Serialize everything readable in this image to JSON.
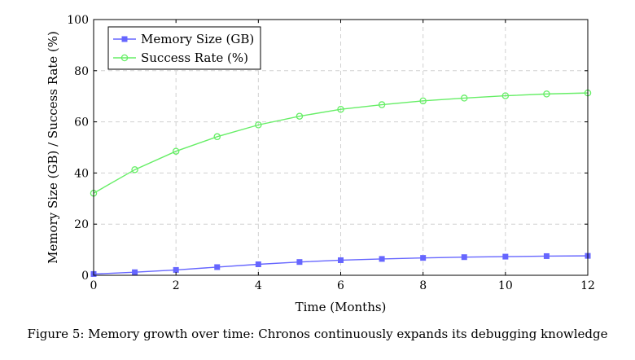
{
  "chart_data": {
    "type": "line",
    "title": "",
    "xlabel": "Time (Months)",
    "ylabel": "Memory Size (GB) / Success Rate (%)",
    "xlim": [
      0,
      12
    ],
    "ylim": [
      0,
      100
    ],
    "grid": true,
    "legend_position": "top-left",
    "x_ticks": [
      "0",
      "2",
      "4",
      "6",
      "8",
      "10",
      "12"
    ],
    "y_ticks": [
      "0",
      "20",
      "40",
      "60",
      "80",
      "100"
    ],
    "x": [
      0,
      1,
      2,
      3,
      4,
      5,
      6,
      7,
      8,
      9,
      10,
      11,
      12
    ],
    "series": [
      {
        "name": "Memory Size (GB)",
        "color": "#6666ff",
        "marker": "square",
        "values": [
          0.5,
          1.2,
          2.1,
          3.2,
          4.3,
          5.2,
          5.9,
          6.4,
          6.8,
          7.1,
          7.3,
          7.5,
          7.6
        ]
      },
      {
        "name": "Success Rate (%)",
        "color": "#66ee66",
        "marker": "circle",
        "values": [
          32.1,
          41.3,
          48.5,
          54.2,
          58.8,
          62.2,
          64.9,
          66.7,
          68.2,
          69.3,
          70.2,
          70.9,
          71.3
        ]
      }
    ]
  },
  "caption": "Figure 5: Memory growth over time: Chronos continuously expands its debugging knowledge"
}
